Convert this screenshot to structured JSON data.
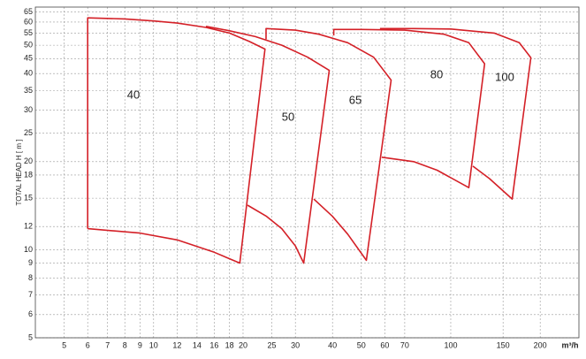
{
  "chart_data": {
    "type": "line",
    "y_label": "TOTAL HEAD H [ m ]",
    "x_label": "m³/h",
    "xscale": "log",
    "yscale": "log",
    "grid": true,
    "xlim": [
      4,
      270
    ],
    "ylim": [
      5,
      67.5
    ],
    "xticks": [
      5,
      6,
      7,
      8,
      9,
      10,
      12,
      14,
      16,
      18,
      20,
      25,
      30,
      40,
      50,
      60,
      70,
      100,
      150,
      200
    ],
    "yticks": [
      5,
      6,
      7,
      8,
      9,
      10,
      12,
      15,
      18,
      20,
      25,
      30,
      35,
      40,
      45,
      50,
      55,
      60,
      65
    ],
    "series": [
      {
        "name": "40",
        "color": "#d42027",
        "x": [
          6,
          6,
          8,
          10,
          12,
          15,
          18,
          21,
          23.7,
          19.5,
          16,
          12,
          9,
          6
        ],
        "values": [
          11.8,
          62,
          61.5,
          60.5,
          59.5,
          57.5,
          55,
          51.5,
          48.5,
          9,
          9.8,
          10.8,
          11.4,
          11.8
        ]
      },
      {
        "name": "50",
        "color": "#d42027",
        "x": [
          20.7,
          24,
          27,
          30,
          32,
          39,
          33,
          27,
          22,
          18,
          15
        ],
        "values": [
          14.2,
          13,
          11.8,
          10.3,
          9,
          41,
          45.5,
          50,
          53.5,
          56,
          58
        ]
      },
      {
        "name": "65",
        "color": "#d42027",
        "x": [
          34.6,
          40,
          45,
          52,
          63,
          55,
          45,
          36,
          30,
          23.9,
          23.9
        ],
        "values": [
          14.9,
          13,
          11.3,
          9.2,
          38,
          45.5,
          51,
          54.5,
          56.3,
          57,
          52.4
        ]
      },
      {
        "name": "80",
        "color": "#d42027",
        "x": [
          58.6,
          75,
          90,
          115,
          130,
          115,
          95,
          70,
          50,
          40.4,
          40.4
        ],
        "values": [
          20.7,
          20,
          18.7,
          16.3,
          43.2,
          51,
          54.5,
          56.3,
          56.6,
          56.6,
          54
        ]
      },
      {
        "name": "100",
        "color": "#d42027",
        "x": [
          118.7,
          135,
          161,
          186,
          170,
          140,
          100,
          75,
          57.8
        ],
        "values": [
          19.3,
          17.5,
          14.9,
          45.3,
          51,
          55,
          56.8,
          57,
          57
        ]
      }
    ]
  }
}
